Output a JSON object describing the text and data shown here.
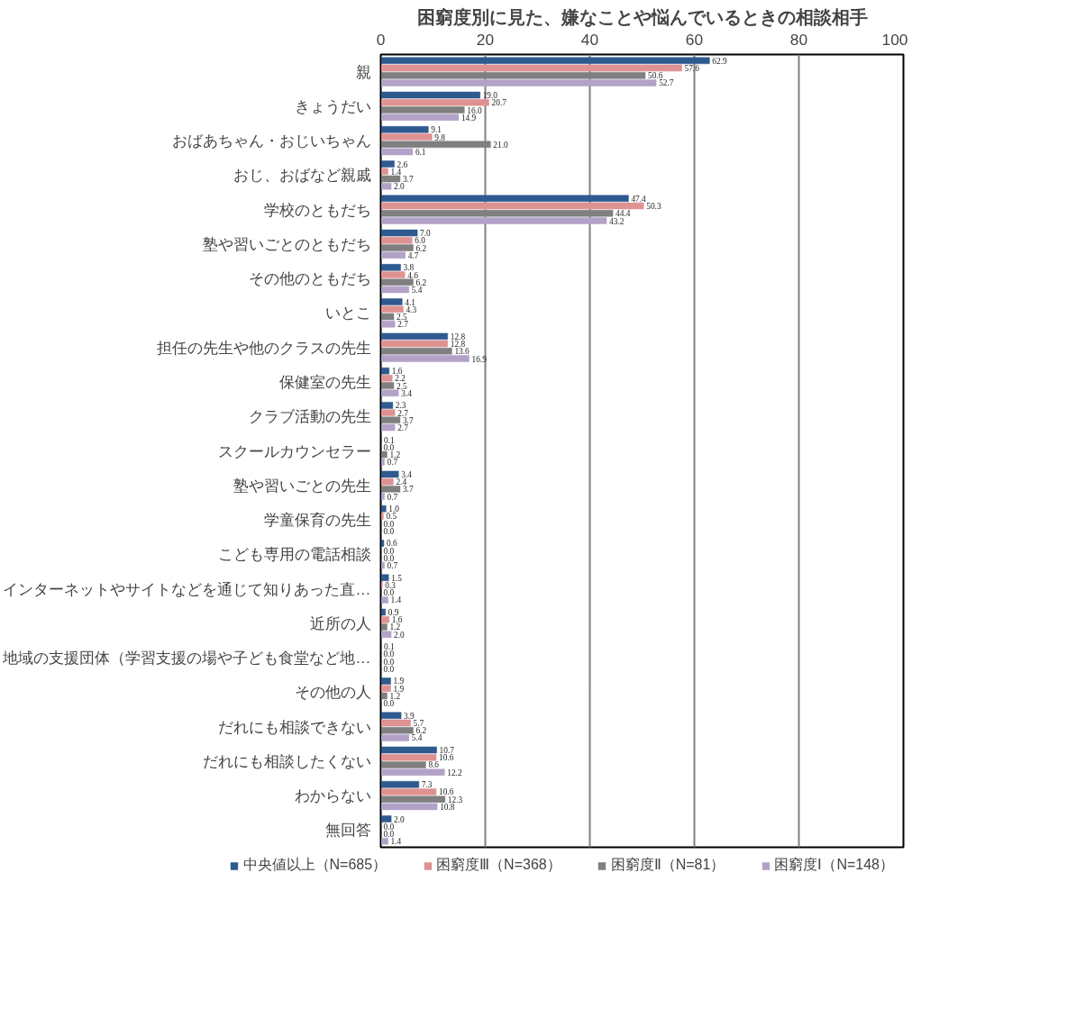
{
  "chart_data": {
    "type": "bar",
    "orientation": "horizontal",
    "title": "困窮度別に見た、嫌なことや悩んでいるときの相談相手",
    "categories": [
      "親",
      "きょうだい",
      "おばあちゃん・おじいちゃん",
      "おじ、おばなど親戚",
      "学校のともだち",
      "塾や習いごとのともだち",
      "その他のともだち",
      "いとこ",
      "担任の先生や他のクラスの先生",
      "保健室の先生",
      "クラブ活動の先生",
      "スクールカウンセラー",
      "塾や習いごとの先生",
      "学童保育の先生",
      "こども専用の電話相談",
      "インターネットやサイトなどを通じて知りあった直…",
      "近所の人",
      "地域の支援団体（学習支援の場や子ども食堂など地…",
      "その他の人",
      "だれにも相談できない",
      "だれにも相談したくない",
      "わからない",
      "無回答"
    ],
    "series": [
      {
        "name": "中央値以上（N=685）",
        "color": "#2f5a8f",
        "values": [
          62.9,
          19.0,
          9.1,
          2.6,
          47.4,
          7.0,
          3.8,
          4.1,
          12.8,
          1.6,
          2.3,
          0.1,
          3.4,
          1.0,
          0.6,
          1.5,
          0.9,
          0.1,
          1.9,
          3.9,
          10.7,
          7.3,
          2.0
        ],
        "value_labels": [
          "62.9",
          "19.0",
          "9.1",
          "2.6",
          "47.4",
          "7.0",
          "3.8",
          "4.1",
          "12.8",
          "1.6",
          "2.3",
          "0.1",
          "3.4",
          "1.0",
          "0.6",
          "1.5",
          "0.9",
          "0.1",
          "1.9",
          "3.9",
          "10.7",
          "7.3",
          "2.0"
        ]
      },
      {
        "name": "困窮度Ⅲ（N=368）",
        "color": "#df9292",
        "values": [
          57.6,
          20.7,
          9.8,
          1.4,
          50.3,
          6.0,
          4.6,
          4.3,
          12.8,
          2.2,
          2.7,
          0.0,
          2.4,
          0.5,
          0.0,
          0.3,
          1.6,
          0.0,
          1.9,
          5.7,
          10.6,
          10.6,
          0.0
        ],
        "value_labels": [
          "57.6",
          "20.7",
          "9.8",
          "1.4",
          "50.3",
          "6.0",
          "4.6",
          "4.3",
          "12.8",
          "2.2",
          "2.7",
          "0.0",
          "2.4",
          "0.5",
          "0.0",
          "0.3",
          "1.6",
          "0.0",
          "1.9",
          "5.7",
          "10.6",
          "10.6",
          "0.0"
        ]
      },
      {
        "name": "困窮度Ⅱ（N=81）",
        "color": "#7f7f7f",
        "values": [
          50.6,
          16.0,
          21.0,
          3.7,
          44.4,
          6.2,
          6.2,
          2.5,
          13.6,
          2.5,
          3.7,
          1.2,
          3.7,
          0.0,
          0.0,
          0.0,
          1.2,
          0.0,
          1.2,
          6.2,
          8.6,
          12.3,
          0.0
        ],
        "value_labels": [
          "50.6",
          "16.0",
          "21.0",
          "3.7",
          "44.4",
          "6.2",
          "6.2",
          "2.5",
          "13.6",
          "2.5",
          "3.7",
          "1.2",
          "3.7",
          "0.0",
          "0.0",
          "0.0",
          "1.2",
          "0.0",
          "1.2",
          "6.2",
          "8.6",
          "12.3",
          "0.0"
        ]
      },
      {
        "name": "困窮度Ⅰ（N=148）",
        "color": "#b3a2c7",
        "values": [
          52.7,
          14.9,
          6.1,
          2.0,
          43.2,
          4.7,
          5.4,
          2.7,
          16.9,
          3.4,
          2.7,
          0.7,
          0.7,
          0.0,
          0.7,
          1.4,
          2.0,
          0.0,
          0.0,
          5.4,
          12.2,
          10.8,
          1.4
        ],
        "value_labels": [
          "52.7",
          "14.9",
          "6.1",
          "2.0",
          "43.2",
          "4.7",
          "5.4",
          "2.7",
          "16.9",
          "3.4",
          "2.7",
          "0.7",
          "0.7",
          "0.0",
          "0.7",
          "1.4",
          "2.0",
          "0.0",
          "0.0",
          "5.4",
          "12.2",
          "10.8",
          "1.4"
        ]
      }
    ],
    "xlim": [
      0,
      100
    ],
    "xticks": [
      0,
      20,
      40,
      60,
      80,
      100
    ],
    "grid": "x",
    "legend": "bottom"
  }
}
